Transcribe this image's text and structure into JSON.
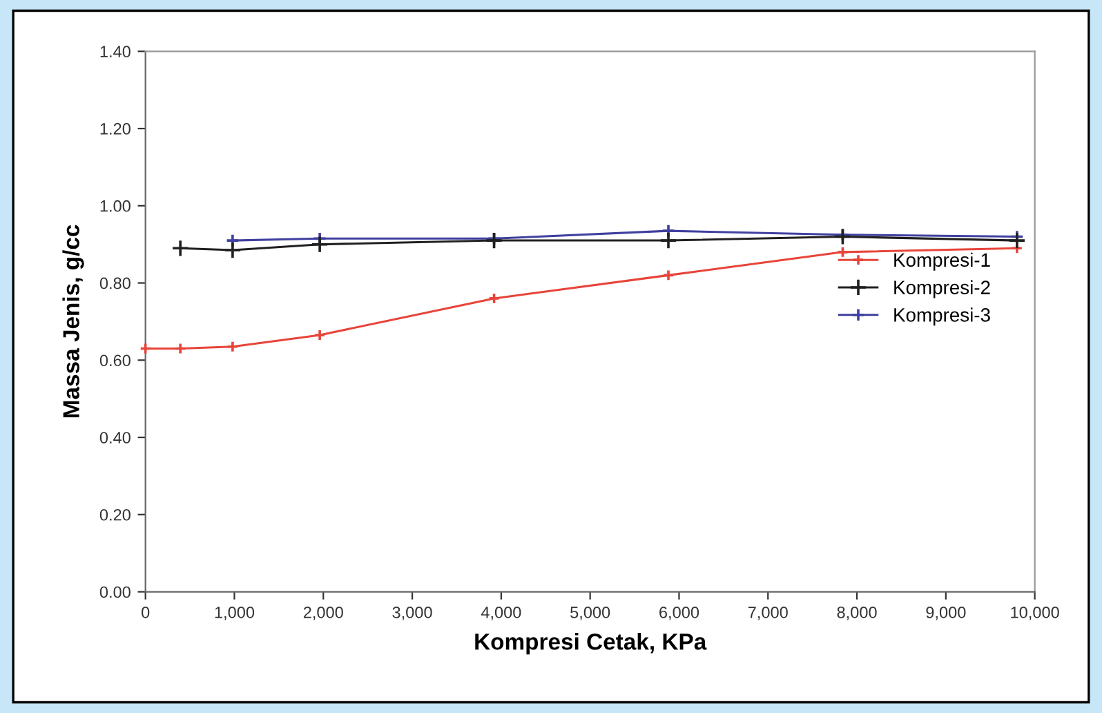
{
  "chart_data": {
    "type": "line",
    "xlabel": "Kompresi Cetak, KPa",
    "ylabel": "Massa Jenis, g/cc",
    "xlim": [
      0,
      10000
    ],
    "ylim": [
      0,
      1.4
    ],
    "xticks": [
      0,
      {
        "value": 1000,
        "label": "1,000"
      },
      {
        "value": 2000,
        "label": "2,000"
      },
      {
        "value": 3000,
        "label": "3,000"
      },
      {
        "value": 4000,
        "label": "4,000"
      },
      {
        "value": 5000,
        "label": "5,000"
      },
      {
        "value": 6000,
        "label": "6,000"
      },
      {
        "value": 7000,
        "label": "7,000"
      },
      {
        "value": 8000,
        "label": "8,000"
      },
      {
        "value": 9000,
        "label": "9,000"
      },
      {
        "value": 10000,
        "label": "10,000"
      }
    ],
    "yticks": [
      {
        "value": 0,
        "label": "0.00"
      },
      {
        "value": 0.2,
        "label": "0.20"
      },
      {
        "value": 0.4,
        "label": "0.40"
      },
      {
        "value": 0.6,
        "label": "0.60"
      },
      {
        "value": 0.8,
        "label": "0.80"
      },
      {
        "value": 1.0,
        "label": "1.00"
      },
      {
        "value": 1.2,
        "label": "1.20"
      },
      {
        "value": 1.4,
        "label": "1.40"
      }
    ],
    "grid": false,
    "legend": "right",
    "marker": "cross",
    "line_style": "solid",
    "series": [
      {
        "name": "Kompresi-1",
        "color": "#e8443a",
        "x": [
          0,
          392,
          980,
          1960,
          3920,
          5880,
          7840,
          9800
        ],
        "values": [
          0.63,
          0.63,
          0.635,
          0.665,
          0.76,
          0.82,
          0.88,
          0.89
        ]
      },
      {
        "name": "Kompresi-2",
        "color": "#202020",
        "x": [
          392,
          980,
          1960,
          3920,
          5880,
          7840,
          9800
        ],
        "values": [
          0.89,
          0.885,
          0.9,
          0.91,
          0.91,
          0.92,
          0.91
        ]
      },
      {
        "name": "Kompresi-3",
        "color": "#4040a0",
        "x": [
          980,
          1960,
          3920,
          5880,
          7840,
          9800
        ],
        "values": [
          0.91,
          0.915,
          0.915,
          0.935,
          0.925,
          0.92
        ]
      }
    ]
  }
}
